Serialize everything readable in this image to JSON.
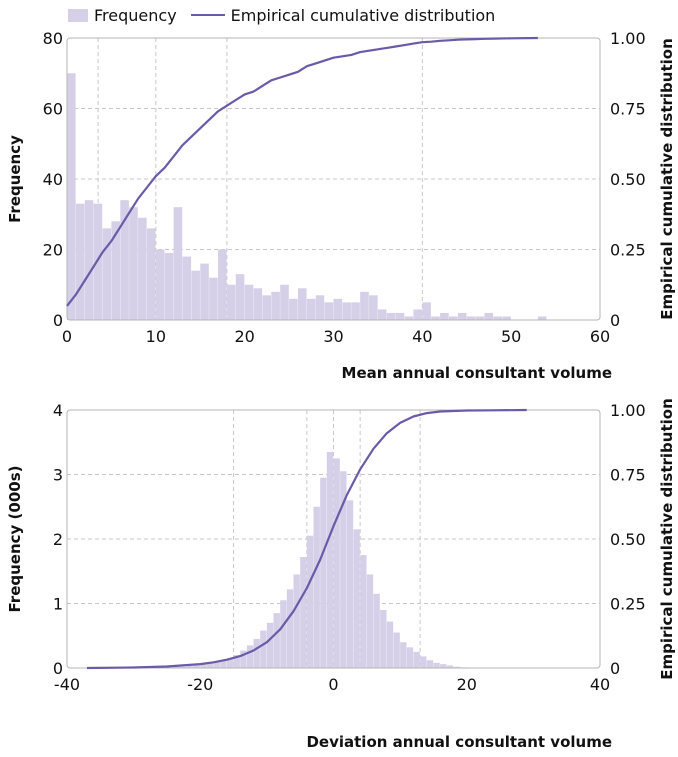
{
  "legend": {
    "bar": "Frequency",
    "line": "Empirical cumulative distribution"
  },
  "colors": {
    "bar": "#d5d0e8",
    "line": "#6a5aa8",
    "grid": "#c8c8c8",
    "frame": "#b5b5b5"
  },
  "chart_data": [
    {
      "type": "bar",
      "title": "",
      "xlabel": "Mean annual consultant volume",
      "ylabel": "Frequency",
      "y2label": "Empirical cumulative distribution",
      "xlim": [
        0,
        60
      ],
      "ylim": [
        0,
        80
      ],
      "y2lim": [
        0,
        1
      ],
      "xticks": [
        "0",
        "10",
        "20",
        "30",
        "40",
        "50",
        "60"
      ],
      "yticks": [
        "0",
        "20",
        "40",
        "60",
        "80"
      ],
      "y2ticks": [
        "0",
        "0.25",
        "0.50",
        "0.75",
        "1.00"
      ],
      "grid_x": [
        3.5,
        10,
        18,
        40
      ],
      "bin_width": 1,
      "series": [
        {
          "name": "Frequency",
          "kind": "bar",
          "x": [
            0.5,
            1.5,
            2.5,
            3.5,
            4.5,
            5.5,
            6.5,
            7.5,
            8.5,
            9.5,
            10.5,
            11.5,
            12.5,
            13.5,
            14.5,
            15.5,
            16.5,
            17.5,
            18.5,
            19.5,
            20.5,
            21.5,
            22.5,
            23.5,
            24.5,
            25.5,
            26.5,
            27.5,
            28.5,
            29.5,
            30.5,
            31.5,
            32.5,
            33.5,
            34.5,
            35.5,
            36.5,
            37.5,
            38.5,
            39.5,
            40.5,
            41.5,
            42.5,
            43.5,
            44.5,
            45.5,
            46.5,
            47.5,
            48.5,
            49.5,
            50.5,
            51.5,
            52.5,
            53.5,
            54.5,
            55.5,
            56.5,
            57.5,
            58.5,
            59.5
          ],
          "values": [
            70,
            33,
            34,
            33,
            26,
            28,
            34,
            32,
            29,
            26,
            20,
            19,
            32,
            18,
            14,
            16,
            12,
            20,
            10,
            13,
            10,
            9,
            7,
            8,
            10,
            6,
            9,
            6,
            7,
            5,
            6,
            5,
            5,
            8,
            7,
            3,
            2,
            2,
            1,
            3,
            5,
            1,
            2,
            1,
            2,
            1,
            1,
            2,
            1,
            1,
            0,
            0,
            0,
            1,
            0,
            0,
            0,
            0,
            0,
            0
          ]
        },
        {
          "name": "Empirical cumulative distribution",
          "kind": "line",
          "x": [
            0,
            0.5,
            1,
            2,
            3,
            4,
            5,
            6,
            7,
            8,
            9,
            10,
            11,
            12,
            13,
            14,
            15,
            16,
            17,
            18,
            19,
            20,
            21,
            22,
            23,
            24,
            25,
            26,
            27,
            28,
            29,
            30,
            31,
            32,
            33,
            34,
            35,
            36,
            37,
            38,
            39,
            40,
            41,
            42,
            43,
            44,
            45,
            46,
            47,
            48,
            50,
            53
          ],
          "values": [
            0.05,
            0.07,
            0.09,
            0.14,
            0.19,
            0.24,
            0.28,
            0.33,
            0.38,
            0.43,
            0.47,
            0.51,
            0.54,
            0.58,
            0.62,
            0.65,
            0.68,
            0.71,
            0.74,
            0.76,
            0.78,
            0.8,
            0.81,
            0.83,
            0.85,
            0.86,
            0.87,
            0.88,
            0.9,
            0.91,
            0.92,
            0.93,
            0.935,
            0.94,
            0.95,
            0.955,
            0.96,
            0.965,
            0.97,
            0.975,
            0.98,
            0.985,
            0.987,
            0.99,
            0.992,
            0.994,
            0.995,
            0.996,
            0.997,
            0.998,
            0.999,
            1.0
          ]
        }
      ]
    },
    {
      "type": "bar",
      "title": "",
      "xlabel": "Deviation annual consultant volume",
      "ylabel": "Frequency (000s)",
      "y2label": "Empirical cumulative distribution",
      "xlim": [
        -40,
        40
      ],
      "ylim": [
        0,
        4
      ],
      "y2lim": [
        0,
        1
      ],
      "xticks": [
        "-40",
        "-20",
        "0",
        "20",
        "40"
      ],
      "yticks": [
        "0",
        "1",
        "2",
        "3",
        "4"
      ],
      "y2ticks": [
        "0",
        "0.25",
        "0.50",
        "0.75",
        "1.00"
      ],
      "grid_x": [
        -15,
        -4,
        0,
        4,
        13
      ],
      "bin_width": 1,
      "series": [
        {
          "name": "Frequency",
          "kind": "bar",
          "x": [
            -24.5,
            -23.5,
            -22.5,
            -21.5,
            -20.5,
            -19.5,
            -18.5,
            -17.5,
            -16.5,
            -15.5,
            -14.5,
            -13.5,
            -12.5,
            -11.5,
            -10.5,
            -9.5,
            -8.5,
            -7.5,
            -6.5,
            -5.5,
            -4.5,
            -3.5,
            -2.5,
            -1.5,
            -0.5,
            0.5,
            1.5,
            2.5,
            3.5,
            4.5,
            5.5,
            6.5,
            7.5,
            8.5,
            9.5,
            10.5,
            11.5,
            12.5,
            13.5,
            14.5,
            15.5,
            16.5,
            17.5,
            18.5,
            19.5
          ],
          "values": [
            0.01,
            0.02,
            0.02,
            0.03,
            0.04,
            0.06,
            0.08,
            0.1,
            0.12,
            0.15,
            0.2,
            0.27,
            0.35,
            0.45,
            0.58,
            0.7,
            0.85,
            1.05,
            1.22,
            1.45,
            1.72,
            2.05,
            2.5,
            2.95,
            3.35,
            3.25,
            3.05,
            2.6,
            2.15,
            1.75,
            1.45,
            1.15,
            0.9,
            0.72,
            0.55,
            0.4,
            0.32,
            0.25,
            0.18,
            0.12,
            0.08,
            0.06,
            0.04,
            0.02,
            0.01
          ]
        },
        {
          "name": "Empirical cumulative distribution",
          "kind": "line",
          "x": [
            -37,
            -30,
            -25,
            -20,
            -18,
            -16,
            -14,
            -12,
            -10,
            -8,
            -6,
            -4,
            -2,
            0,
            2,
            4,
            6,
            8,
            10,
            12,
            14,
            16,
            20,
            24,
            29
          ],
          "values": [
            0,
            0.002,
            0.006,
            0.015,
            0.022,
            0.032,
            0.046,
            0.068,
            0.1,
            0.15,
            0.22,
            0.31,
            0.42,
            0.55,
            0.67,
            0.77,
            0.85,
            0.91,
            0.95,
            0.975,
            0.988,
            0.994,
            0.998,
            0.999,
            1.0
          ]
        }
      ]
    }
  ]
}
